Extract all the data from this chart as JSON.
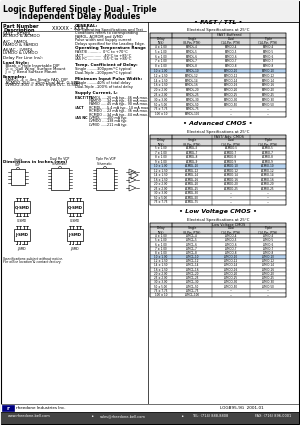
{
  "title_line1": "Logic Buffered Single - Dual - Triple",
  "title_line2": "Independent Delay Modules",
  "bg_color": "#ffffff",
  "fast_ttl_rows": [
    [
      "4 ± 1.00",
      "FAMOL-4",
      "FAMDO-4",
      "FAMIO-4"
    ],
    [
      "5 ± 1.00",
      "FAMOL-5",
      "FAMDO-5",
      "FAMIO-5"
    ],
    [
      "6 ± 1.00",
      "FAMOL-6",
      "FAMDO-6",
      "FAMIO-6"
    ],
    [
      "7 ± 1.00",
      "FAMOL-7",
      "FAMDO-7",
      "FAMIO-7"
    ],
    [
      "8 ± 1.00",
      "FAMOL-8",
      "FAMDO-8",
      "FAMIO-8"
    ],
    [
      "10 ± 1.00",
      "FAMOL-10",
      "FAMDO-10",
      "FAMIO-10"
    ],
    [
      "12 ± 1.50",
      "FAMOL-12",
      "FAMDO-12",
      "FAMIO-12"
    ],
    [
      "14 ± 1.50",
      "FAMOL-14",
      "FAMDO-14",
      "FAMIO-14"
    ],
    [
      "16 ± 1.50",
      "FAMOL-16",
      "FAMDO-16",
      "FAMIO-16"
    ],
    [
      "20 ± 2.00",
      "FAMOL-20",
      "FAMDO-20",
      "FAMIO-20"
    ],
    [
      "25 ± 2.00",
      "FAMOL-25",
      "FAMDO-25",
      "FAMIO-25"
    ],
    [
      "30 ± 3.00",
      "FAMOL-30",
      "FAMDO-30",
      "FAMIO-30"
    ],
    [
      "50 ± 5.00",
      "FAMOL-50",
      "FAMDO-50",
      "FAMIO-50"
    ],
    [
      "75 ± 7.75",
      "FAMOL-75",
      "---",
      "---"
    ],
    [
      "100 ± 10",
      "FAMOL-100",
      "---",
      "---"
    ]
  ],
  "acmos_rows": [
    [
      "5 ± 1.00",
      "ACMDL-5",
      "ACMDO-5",
      "ACMIO-5"
    ],
    [
      "7 ± 1.00",
      "ACMDL-7",
      "ACMDO-7",
      "ACMIO-7"
    ],
    [
      "8 ± 1.00",
      "ACMDL-8",
      "ACMDO-8",
      "ACMIO-8"
    ],
    [
      "9 ± 1.00",
      "ACMDL-9",
      "ACMDO-9",
      "ACMIO-9"
    ],
    [
      "10 ± 1.00",
      "ACMDL-10",
      "ACMDO-10",
      "ACMIO-10"
    ],
    [
      "12 ± 1.50",
      "ACMDL-12",
      "ACMDO-12",
      "ACMIO-12"
    ],
    [
      "14 ± 1.50",
      "ACMDL-14",
      "ACMDO-14",
      "ACMIO-14"
    ],
    [
      "16 ± 1.50",
      "ACMDL-16",
      "ACMDO-16",
      "ACMIO-16"
    ],
    [
      "20 ± 2.00",
      "ACMDL-20",
      "ACMDO-20",
      "ACMIO-20"
    ],
    [
      "25 ± 2.00",
      "ACMDL-25",
      "ACMDO-25",
      "ACMIO-25"
    ],
    [
      "30 ± 3.00",
      "ACMDL-30",
      "---",
      "---"
    ],
    [
      "50 ± 5.00",
      "ACMDL-50",
      "---",
      "---"
    ],
    [
      "75 ± 7.75",
      "ACMDL-75",
      "---",
      "---"
    ]
  ],
  "lvcmos_rows": [
    [
      "4 ± 1.00",
      "LVMDL-4",
      "LVMDO-4",
      "LVMIO-4"
    ],
    [
      "5 ± 1.00",
      "LVMDL-5",
      "LVMDO-5",
      "LVMIO-5"
    ],
    [
      "6 ± 1.00",
      "LVMDL-6",
      "LVMDO-6",
      "LVMIO-6"
    ],
    [
      "7 ± 1.00",
      "LVMDL-7",
      "LVMDO-7",
      "LVMIO-7"
    ],
    [
      "8 ± 1.00",
      "LVMDL-8",
      "LVMDO-8",
      "LVMIO-8"
    ],
    [
      "10 ± 1.00",
      "LVMDL-10",
      "LVMDO-10",
      "LVMIO-10"
    ],
    [
      "12 ± 1.50",
      "LVMDL-12",
      "LVMDO-12",
      "LVMIO-12"
    ],
    [
      "14 ± 1.50",
      "LVMDL-14",
      "LVMDO-14",
      "LVMIO-14"
    ],
    [
      "16 ± 1.50",
      "LVMDL-16",
      "LVMDO-16",
      "LVMIO-16"
    ],
    [
      "20 ± 2.00",
      "LVMDL-20",
      "LVMDO-20",
      "LVMIO-20"
    ],
    [
      "25 ± 2.00",
      "LVMDL-25",
      "LVMDO-25",
      "LVMIO-25"
    ],
    [
      "30 ± 3.00",
      "LVMDL-30",
      "LVMDO-30",
      "LVMIO-30"
    ],
    [
      "50 ± 5.00",
      "LVMDL-50",
      "LVMDO-50",
      "LVMIO-50"
    ],
    [
      "75 ± 7.75",
      "LVMDL-75",
      "---",
      "---"
    ],
    [
      "100 ± 10",
      "LVMDL-100",
      "---",
      "---"
    ]
  ],
  "highlight_fast": 5,
  "highlight_acmos": 4,
  "highlight_lvcmos": 5,
  "footer_bar_color": "#444444",
  "footer_logo_color": "#000080"
}
